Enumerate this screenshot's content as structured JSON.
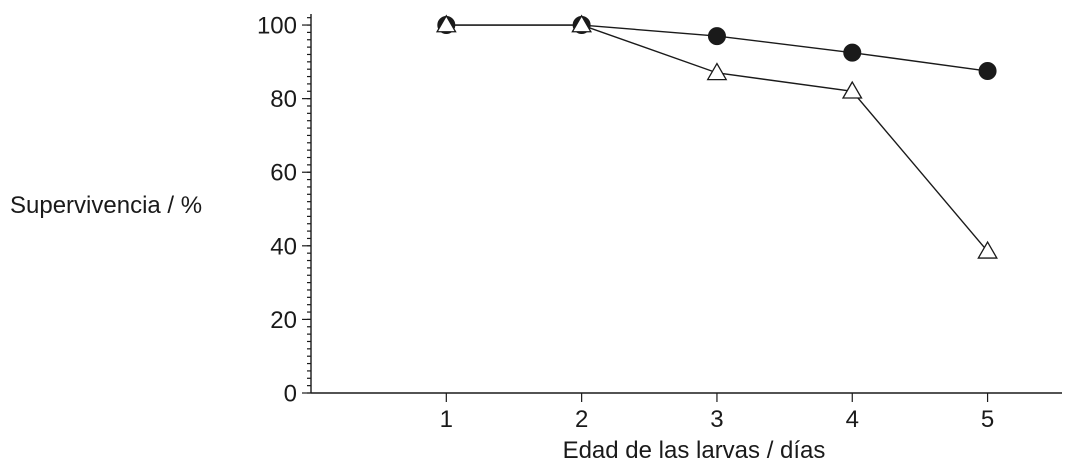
{
  "chart_data": {
    "type": "line",
    "xlabel": "Edad de las larvas / días",
    "ylabel": "Supervivencia / %",
    "xlim": [
      0,
      5.55
    ],
    "ylim": [
      0,
      103
    ],
    "x_ticks": [
      1,
      2,
      3,
      4,
      5
    ],
    "y_ticks": [
      0,
      20,
      40,
      60,
      80,
      100
    ],
    "y_minor_step": 2,
    "grid": false,
    "legend": "none",
    "series": [
      {
        "marker": "filled-circle",
        "x": [
          1,
          2,
          3,
          4,
          5
        ],
        "values": [
          100,
          100,
          97,
          92.5,
          87.5
        ]
      },
      {
        "marker": "open-triangle",
        "x": [
          1,
          2,
          3,
          4,
          5
        ],
        "values": [
          100,
          100,
          87,
          82,
          38.5
        ]
      }
    ]
  }
}
